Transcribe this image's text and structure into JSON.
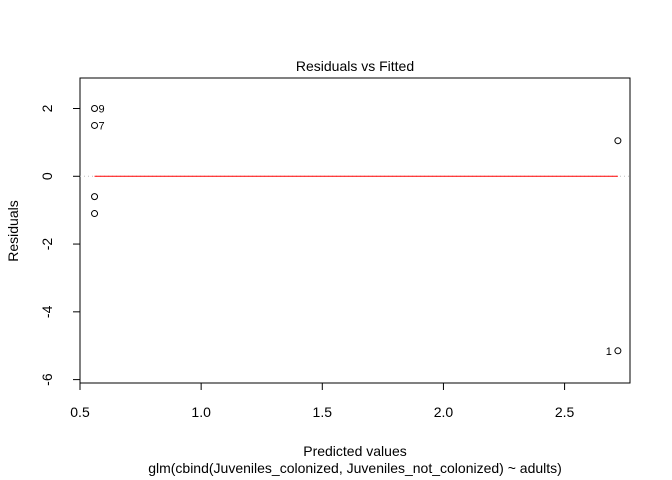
{
  "chart_data": {
    "type": "scatter",
    "title": "Residuals vs Fitted",
    "xlabel": "Predicted values",
    "subtitle": "glm(cbind(Juveniles_colonized, Juveniles_not_colonized) ~ adults)",
    "ylabel": "Residuals",
    "xlim": [
      0.5,
      2.77
    ],
    "ylim": [
      -6.1,
      2.9
    ],
    "x_ticks": [
      0.5,
      1.0,
      1.5,
      2.0,
      2.5
    ],
    "x_tick_labels": [
      "0.5",
      "1.0",
      "1.5",
      "2.0",
      "2.5"
    ],
    "y_ticks": [
      -6,
      -4,
      -2,
      0,
      2
    ],
    "y_tick_labels": [
      "-6",
      "-4",
      "-2",
      "0",
      "2"
    ],
    "points": [
      {
        "x": 0.56,
        "y": 2.0,
        "label": "9"
      },
      {
        "x": 0.56,
        "y": 1.5,
        "label": "7"
      },
      {
        "x": 0.56,
        "y": -0.6,
        "label": ""
      },
      {
        "x": 0.56,
        "y": -1.1,
        "label": ""
      },
      {
        "x": 2.72,
        "y": 1.05,
        "label": ""
      },
      {
        "x": 2.72,
        "y": -5.15,
        "label": "1"
      }
    ],
    "reference_line_y": 0,
    "smooth_line": [
      [
        0.56,
        0.0
      ],
      [
        2.72,
        0.0
      ]
    ],
    "colors": {
      "points": "#000000",
      "reference_line": "#bebebe",
      "smooth_line": "#ff0000",
      "axis": "#000000"
    }
  }
}
